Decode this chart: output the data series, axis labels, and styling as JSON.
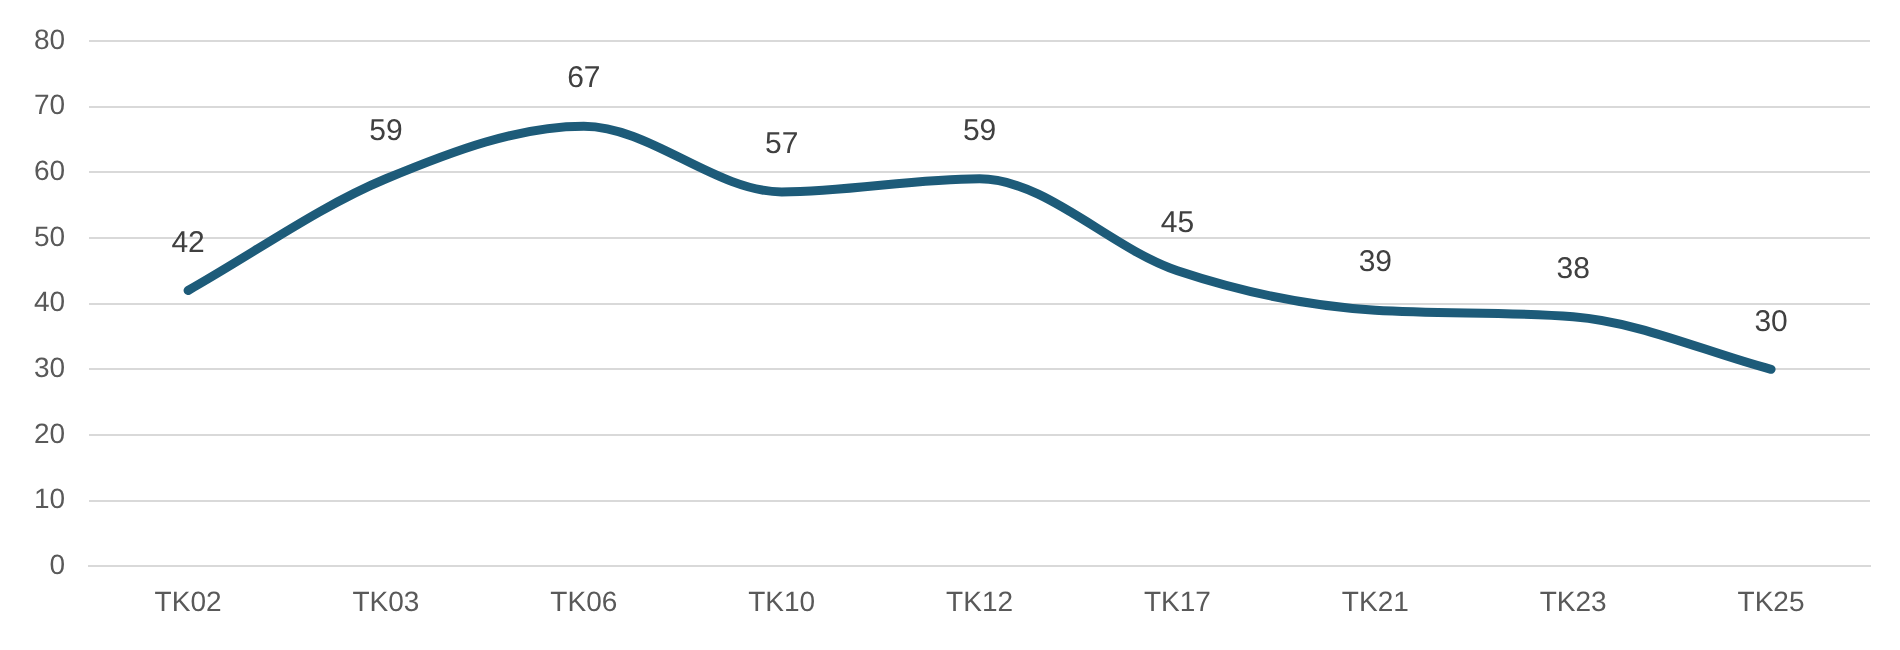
{
  "chart_data": {
    "type": "line",
    "categories": [
      "TK02",
      "TK03",
      "TK06",
      "TK10",
      "TK12",
      "TK17",
      "TK21",
      "TK23",
      "TK25"
    ],
    "values": [
      42,
      59,
      67,
      57,
      59,
      45,
      39,
      38,
      30
    ],
    "color": "#1d5b79",
    "ylim": [
      0,
      80
    ],
    "yticks": [
      0,
      10,
      20,
      30,
      40,
      50,
      60,
      70,
      80
    ],
    "grid": "y",
    "data_labels": true,
    "marker": "none",
    "legend": false
  }
}
